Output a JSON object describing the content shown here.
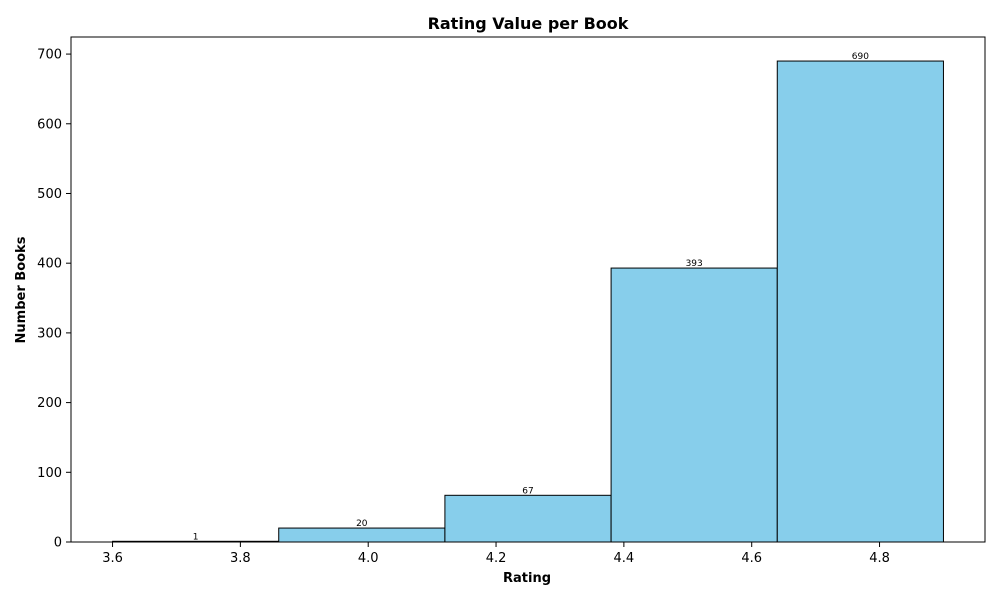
{
  "chart_data": {
    "type": "bar",
    "title": "Rating Value per Book",
    "xlabel": "Rating",
    "ylabel": "Number Books",
    "bins": [
      {
        "start": 3.6,
        "end": 3.86,
        "value": 1,
        "label": "1"
      },
      {
        "start": 3.86,
        "end": 4.12,
        "value": 20,
        "label": "20"
      },
      {
        "start": 4.12,
        "end": 4.38,
        "value": 67,
        "label": "67"
      },
      {
        "start": 4.38,
        "end": 4.64,
        "value": 393,
        "label": "393"
      },
      {
        "start": 4.64,
        "end": 4.9,
        "value": 690,
        "label": "690"
      }
    ],
    "xlim": [
      3.535,
      4.965
    ],
    "ylim": [
      0,
      724.5
    ],
    "x_ticks": [
      {
        "value": 3.6,
        "label": "3.6"
      },
      {
        "value": 3.8,
        "label": "3.8"
      },
      {
        "value": 4.0,
        "label": "4.0"
      },
      {
        "value": 4.2,
        "label": "4.2"
      },
      {
        "value": 4.4,
        "label": "4.4"
      },
      {
        "value": 4.6,
        "label": "4.6"
      },
      {
        "value": 4.8,
        "label": "4.8"
      }
    ],
    "y_ticks": [
      {
        "value": 0,
        "label": "0"
      },
      {
        "value": 100,
        "label": "100"
      },
      {
        "value": 200,
        "label": "200"
      },
      {
        "value": 300,
        "label": "300"
      },
      {
        "value": 400,
        "label": "400"
      },
      {
        "value": 500,
        "label": "500"
      },
      {
        "value": 600,
        "label": "600"
      },
      {
        "value": 700,
        "label": "700"
      }
    ],
    "grid": false,
    "colors": {
      "bar_fill": "#87ceeb",
      "bar_edge": "#000000"
    }
  }
}
